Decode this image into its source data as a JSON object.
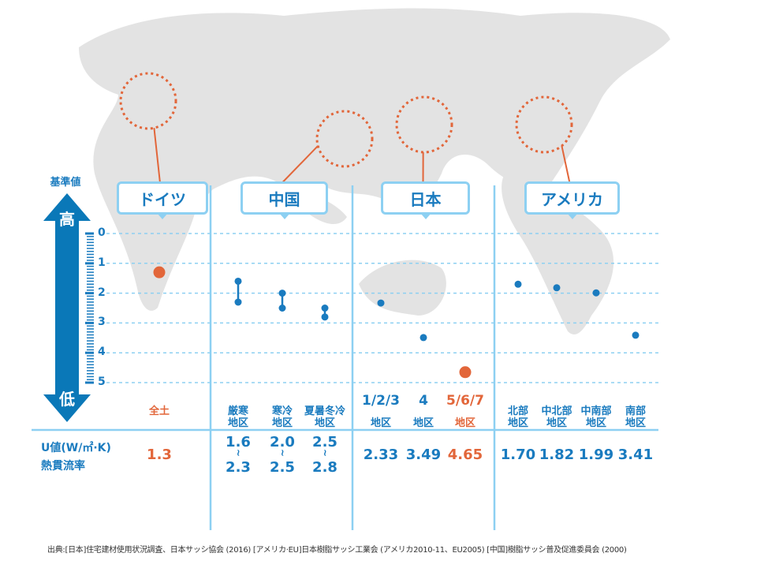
{
  "chart_data": {
    "type": "scatter",
    "ylabel": "基準値",
    "axis_top": "高",
    "axis_bottom": "低",
    "ylim": [
      0,
      5
    ],
    "yticks": [
      "0",
      "1",
      "2",
      "3",
      "4",
      "5"
    ],
    "grid": true,
    "row_label_line1": "U値(W/㎡·K)",
    "row_label_line2": "熱貫流率",
    "colors": {
      "blue": "#1a7bbf",
      "orange": "#e2663a",
      "light": "#8dd0f2",
      "map": "#e3e3e3"
    },
    "groups": [
      {
        "country": "ドイツ",
        "items": [
          {
            "label": [
              "全土"
            ],
            "value_text": [
              "1.3"
            ],
            "values": [
              1.3
            ],
            "highlight": true
          }
        ]
      },
      {
        "country": "中国",
        "items": [
          {
            "label": [
              "厳寒",
              "地区"
            ],
            "value_text": [
              "1.6",
              "2.3"
            ],
            "values": [
              1.6,
              2.3
            ]
          },
          {
            "label": [
              "寒冷",
              "地区"
            ],
            "value_text": [
              "2.0",
              "2.5"
            ],
            "values": [
              2.0,
              2.5
            ]
          },
          {
            "label": [
              "夏暑冬冷",
              "地区"
            ],
            "value_text": [
              "2.5",
              "2.8"
            ],
            "values": [
              2.5,
              2.8
            ]
          }
        ]
      },
      {
        "country": "日本",
        "items": [
          {
            "label": [
              "1/2/3",
              "地区"
            ],
            "value_text": [
              "2.33"
            ],
            "values": [
              2.33
            ]
          },
          {
            "label": [
              "4",
              "地区"
            ],
            "value_text": [
              "3.49"
            ],
            "values": [
              3.49
            ]
          },
          {
            "label": [
              "5/6/7",
              "地区"
            ],
            "value_text": [
              "4.65"
            ],
            "values": [
              4.65
            ],
            "highlight": true
          }
        ]
      },
      {
        "country": "アメリカ",
        "items": [
          {
            "label": [
              "北部",
              "地区"
            ],
            "value_text": [
              "1.70"
            ],
            "values": [
              1.7
            ]
          },
          {
            "label": [
              "中北部",
              "地区"
            ],
            "value_text": [
              "1.82"
            ],
            "values": [
              1.82
            ]
          },
          {
            "label": [
              "中南部",
              "地区"
            ],
            "value_text": [
              "1.99"
            ],
            "values": [
              1.99
            ]
          },
          {
            "label": [
              "南部",
              "地区"
            ],
            "value_text": [
              "3.41"
            ],
            "values": [
              3.41
            ]
          }
        ]
      }
    ],
    "source": "出典:[日本]住宅建材使用状況調査、日本サッシ協会 (2016) [アメリカ·EU]日本樹脂サッシ工業会 (アメリカ2010-11、EU2005) [中国]樹脂サッシ普及促進委員会 (2000)"
  }
}
